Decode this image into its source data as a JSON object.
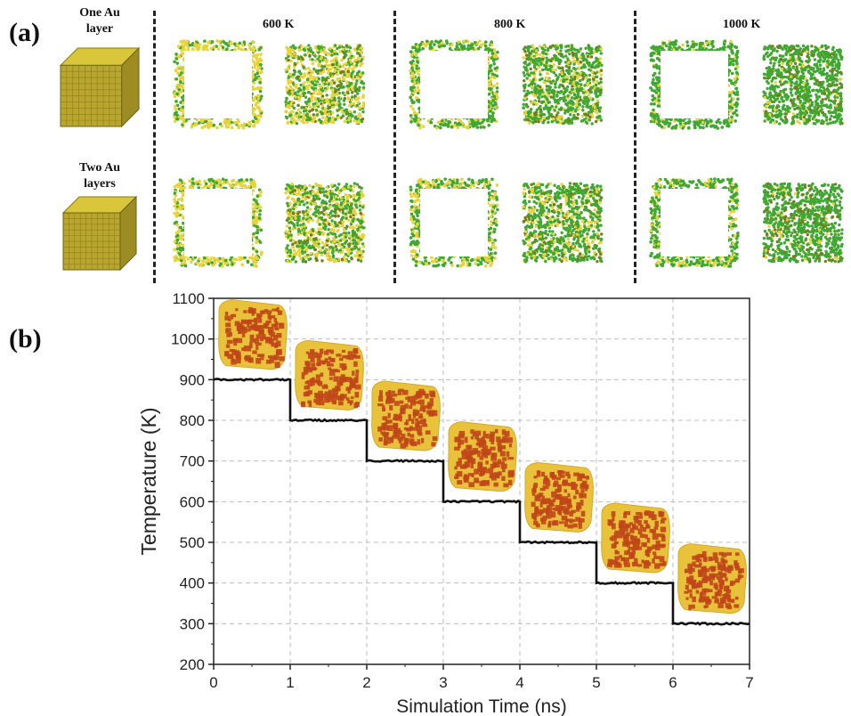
{
  "panel_a": {
    "label": "(a)",
    "row_labels": [
      "One Au\nlayer",
      "Two Au\nlayers"
    ],
    "temperature_labels": [
      "600 K",
      "800 K",
      "1000 K"
    ],
    "colors": {
      "gold": "#e8d33a",
      "green": "#3fa832",
      "olive": "#7a7a1c"
    }
  },
  "panel_b": {
    "label": "(b)"
  },
  "chart_data": {
    "type": "line",
    "xlabel": "Simulation Time (ns)",
    "ylabel": "Temperature (K)",
    "xlim": [
      0,
      7
    ],
    "ylim": [
      200,
      1100
    ],
    "xticks": [
      0,
      1,
      2,
      3,
      4,
      5,
      6,
      7
    ],
    "yticks": [
      200,
      300,
      400,
      500,
      600,
      700,
      800,
      900,
      1000,
      1100
    ],
    "grid": true,
    "series": [
      {
        "color": "#111111",
        "points": [
          [
            0,
            900
          ],
          [
            1,
            900
          ],
          [
            1,
            800
          ],
          [
            2,
            800
          ],
          [
            2,
            700
          ],
          [
            3,
            700
          ],
          [
            3,
            600
          ],
          [
            4,
            600
          ],
          [
            4,
            500
          ],
          [
            5,
            500
          ],
          [
            5,
            400
          ],
          [
            6,
            400
          ],
          [
            6,
            300
          ],
          [
            7,
            300
          ]
        ]
      }
    ],
    "insets": {
      "description_colors": {
        "core": "#c0461a",
        "shell": "#e8c23a"
      },
      "anchors": [
        [
          1000,
          0.5
        ],
        [
          900,
          1.5
        ],
        [
          800,
          2.5
        ],
        [
          700,
          3.5
        ],
        [
          600,
          4.5
        ],
        [
          500,
          5.5
        ],
        [
          400,
          6.5
        ]
      ]
    }
  }
}
